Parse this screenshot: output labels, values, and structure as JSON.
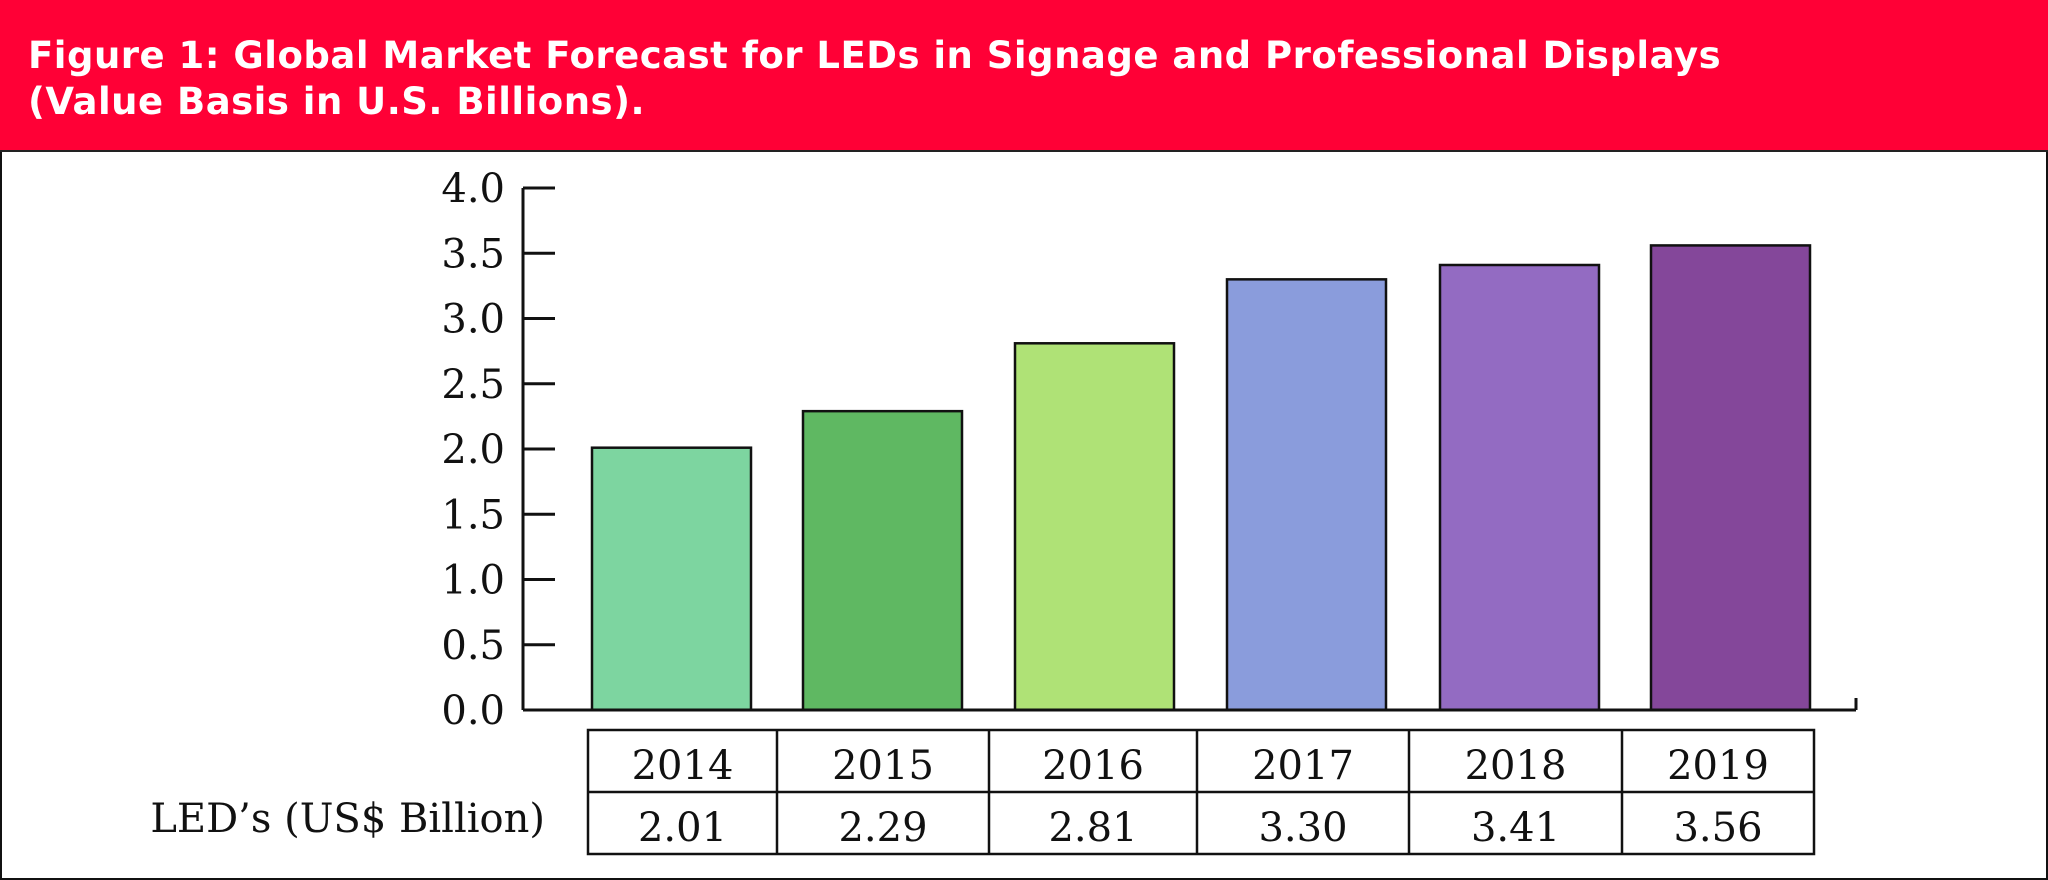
{
  "header": {
    "title_line1": "Figure 1: Global Market Forecast for LEDs in Signage and Professional Displays",
    "title_line2": "(Value Basis in U.S. Billions).",
    "bg_color": "#ff0036"
  },
  "chart_data": {
    "type": "bar",
    "title": "Figure 1: Global Market Forecast for LEDs in Signage and Professional Displays (Value Basis in U.S. Billions).",
    "categories": [
      "2014",
      "2015",
      "2016",
      "2017",
      "2018",
      "2019"
    ],
    "values": [
      2.01,
      2.29,
      2.81,
      3.3,
      3.41,
      3.56
    ],
    "value_labels": [
      "2.01",
      "2.29",
      "2.81",
      "3.30",
      "3.41",
      "3.56"
    ],
    "colors": [
      "#7dd5a0",
      "#5fb862",
      "#afe276",
      "#8a9cdc",
      "#936bc2",
      "#84479a"
    ],
    "series_name": "LED’s (US$ Billion)",
    "ylim": [
      0,
      4.0
    ],
    "yticks": [
      "0.0",
      "0.5",
      "1.0",
      "1.5",
      "2.0",
      "2.5",
      "3.0",
      "3.5",
      "4.0"
    ],
    "ytick_values": [
      0,
      0.5,
      1.0,
      1.5,
      2.0,
      2.5,
      3.0,
      3.5,
      4.0
    ],
    "xlabel": "",
    "ylabel": "",
    "grid": false,
    "legend": "none"
  }
}
